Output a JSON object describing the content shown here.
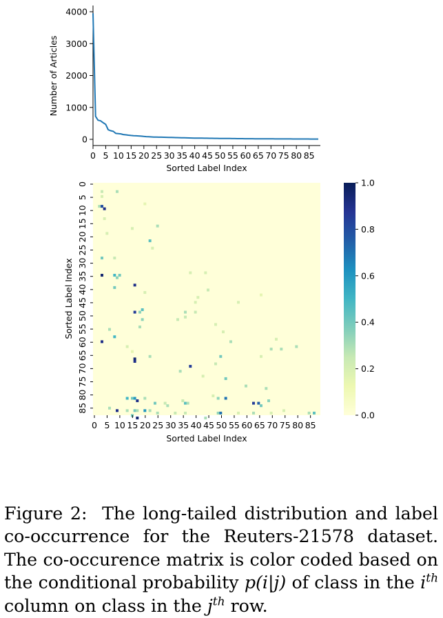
{
  "chart_data": [
    {
      "type": "line",
      "xlabel": "Sorted Label Index",
      "ylabel": "Number of Articles",
      "xlim": [
        0,
        90
      ],
      "ylim": [
        -150,
        4000
      ],
      "x_ticks": [
        "0",
        "5",
        "10",
        "15",
        "20",
        "25",
        "30",
        "35",
        "40",
        "45",
        "50",
        "55",
        "60",
        "65",
        "70",
        "75",
        "80",
        "85"
      ],
      "y_ticks": [
        "0",
        "1000",
        "2000",
        "3000",
        "4000"
      ],
      "color": "#1f77b4",
      "x": [
        0,
        1,
        2,
        3,
        4,
        5,
        6,
        7,
        8,
        9,
        10,
        11,
        12,
        13,
        14,
        15,
        16,
        17,
        18,
        19,
        20,
        21,
        22,
        23,
        24,
        25,
        26,
        27,
        28,
        29,
        30,
        31,
        32,
        33,
        34,
        35,
        36,
        37,
        38,
        39,
        40,
        41,
        42,
        43,
        44,
        45,
        46,
        47,
        48,
        49,
        50,
        51,
        52,
        53,
        54,
        55,
        56,
        57,
        58,
        59,
        60,
        61,
        62,
        63,
        64,
        65,
        66,
        67,
        68,
        69,
        70,
        71,
        72,
        73,
        74,
        75,
        76,
        77,
        78,
        79,
        80,
        81,
        82,
        83,
        84,
        85,
        86,
        87,
        88,
        89
      ],
      "y": [
        3950,
        720,
        600,
        580,
        520,
        470,
        300,
        270,
        250,
        185,
        180,
        170,
        150,
        140,
        130,
        120,
        115,
        110,
        105,
        100,
        90,
        85,
        80,
        76,
        72,
        70,
        68,
        66,
        64,
        62,
        60,
        58,
        56,
        54,
        52,
        50,
        48,
        46,
        44,
        42,
        40,
        38,
        37,
        36,
        35,
        34,
        33,
        32,
        31,
        30,
        29,
        28,
        27,
        26,
        25,
        24,
        23,
        22,
        21,
        21,
        20,
        20,
        19,
        19,
        18,
        18,
        17,
        17,
        16,
        16,
        15,
        15,
        14,
        14,
        13,
        13,
        12,
        12,
        12,
        11,
        11,
        11,
        10,
        10,
        10,
        10,
        9,
        9,
        9,
        9
      ]
    },
    {
      "type": "heatmap",
      "xlabel": "Sorted Label Index",
      "ylabel": "Sorted Label Index",
      "size": 90,
      "x_ticks": [
        "0",
        "5",
        "10",
        "15",
        "20",
        "25",
        "30",
        "35",
        "40",
        "45",
        "50",
        "55",
        "60",
        "65",
        "70",
        "75",
        "80",
        "85"
      ],
      "y_ticks": [
        "0",
        "5",
        "10",
        "15",
        "20",
        "25",
        "30",
        "35",
        "40",
        "45",
        "50",
        "55",
        "60",
        "65",
        "70",
        "75",
        "80",
        "85"
      ],
      "colorbar_ticks": [
        "1.0",
        "0.8",
        "0.6",
        "0.4",
        "0.2",
        "0.0"
      ],
      "colormap": [
        "#ffffd9",
        "#edf8b1",
        "#c7e9b4",
        "#7fcdbb",
        "#41b6c4",
        "#1d91c0",
        "#225ea8",
        "#253494",
        "#081d58"
      ],
      "cells": [
        [
          3,
          3,
          0.25
        ],
        [
          9,
          2,
          0.3
        ],
        [
          10,
          4,
          0.9
        ],
        [
          9,
          3,
          0.8
        ],
        [
          3,
          9,
          0.3
        ],
        [
          5,
          3,
          0.2
        ],
        [
          8,
          20,
          0.15
        ],
        [
          17,
          25,
          0.3
        ],
        [
          23,
          22,
          0.45
        ],
        [
          30,
          3,
          0.4
        ],
        [
          30,
          8,
          0.25
        ],
        [
          37,
          3,
          0.95
        ],
        [
          37,
          8,
          0.5
        ],
        [
          37,
          10,
          0.4
        ],
        [
          38,
          9,
          0.35
        ],
        [
          42,
          8,
          0.4
        ],
        [
          41,
          16,
          0.9
        ],
        [
          44,
          20,
          0.2
        ],
        [
          48,
          40,
          0.2
        ],
        [
          52,
          16,
          0.85
        ],
        [
          52,
          18,
          0.35
        ],
        [
          51,
          19,
          0.45
        ],
        [
          55,
          19,
          0.35
        ],
        [
          58,
          18,
          0.3
        ],
        [
          52,
          36,
          0.3
        ],
        [
          52,
          40,
          0.25
        ],
        [
          59,
          6,
          0.3
        ],
        [
          64,
          3,
          0.9
        ],
        [
          62,
          8,
          0.5
        ],
        [
          66,
          13,
          0.2
        ],
        [
          68,
          15,
          0.15
        ],
        [
          71,
          16,
          0.95
        ],
        [
          72,
          16,
          0.9
        ],
        [
          70,
          22,
          0.3
        ],
        [
          74,
          38,
          0.85
        ],
        [
          73,
          48,
          0.25
        ],
        [
          70,
          50,
          0.4
        ],
        [
          76,
          34,
          0.3
        ],
        [
          78,
          43,
          0.2
        ],
        [
          79,
          52,
          0.4
        ],
        [
          82,
          60,
          0.3
        ],
        [
          88,
          17,
          0.9
        ],
        [
          87,
          13,
          0.5
        ],
        [
          87,
          15,
          0.4
        ],
        [
          87,
          16,
          0.6
        ],
        [
          87,
          20,
          0.3
        ],
        [
          89,
          24,
          0.4
        ],
        [
          89,
          28,
          0.25
        ],
        [
          90,
          29,
          0.3
        ],
        [
          89,
          36,
          0.45
        ],
        [
          89,
          37,
          0.3
        ],
        [
          87,
          49,
          0.35
        ],
        [
          87,
          52,
          0.7
        ],
        [
          92,
          9,
          0.9
        ],
        [
          91,
          6,
          0.3
        ],
        [
          92,
          13,
          0.3
        ],
        [
          92,
          16,
          0.4
        ],
        [
          92,
          17,
          0.3
        ],
        [
          92,
          20,
          0.6
        ],
        [
          92,
          22,
          0.3
        ],
        [
          89,
          63,
          0.85
        ],
        [
          89,
          65,
          0.75
        ],
        [
          90,
          66,
          0.4
        ],
        [
          92,
          75,
          0.2
        ],
        [
          95,
          17,
          0.95
        ],
        [
          94,
          15,
          0.4
        ],
        [
          93,
          25,
          0.3
        ],
        [
          93,
          32,
          0.25
        ],
        [
          93,
          36,
          0.25
        ],
        [
          93,
          49,
          0.35
        ],
        [
          93,
          50,
          0.7
        ],
        [
          95,
          44,
          0.3
        ],
        [
          93,
          57,
          0.2
        ],
        [
          93,
          63,
          0.3
        ],
        [
          93,
          70,
          0.2
        ],
        [
          93,
          85,
          0.3
        ],
        [
          93,
          87,
          0.45
        ],
        [
          88,
          69,
          0.35
        ],
        [
          88,
          35,
          0.25
        ],
        [
          83,
          68,
          0.3
        ],
        [
          86,
          47,
          0.2
        ],
        [
          67,
          70,
          0.3
        ],
        [
          70,
          66,
          0.2
        ],
        [
          67,
          74,
          0.3
        ],
        [
          63,
          72,
          0.2
        ],
        [
          66,
          80,
          0.3
        ],
        [
          60,
          51,
          0.2
        ],
        [
          64,
          54,
          0.3
        ],
        [
          57,
          48,
          0.2
        ],
        [
          55,
          33,
          0.25
        ],
        [
          54,
          36,
          0.25
        ],
        [
          46,
          41,
          0.2
        ],
        [
          43,
          45,
          0.25
        ],
        [
          48,
          57,
          0.2
        ],
        [
          36,
          38,
          0.2
        ],
        [
          20,
          5,
          0.2
        ],
        [
          14,
          4,
          0.2
        ],
        [
          18,
          15,
          0.2
        ],
        [
          26,
          23,
          0.2
        ],
        [
          36,
          44,
          0.2
        ],
        [
          45,
          66,
          0.15
        ]
      ]
    }
  ],
  "caption": {
    "figure_label": "Figure 2:",
    "text_1": "The long-tailed distribution and label co-occurrence for the Reuters-21578 dataset. The co-occurence matrix is color coded based on the conditional probability",
    "math": "p(i|j)",
    "text_2": "of class in the",
    "i_var": "i",
    "sup_1": "th",
    "text_3": "column on class in the",
    "j_var": "j",
    "sup_2": "th",
    "text_4": "row."
  }
}
